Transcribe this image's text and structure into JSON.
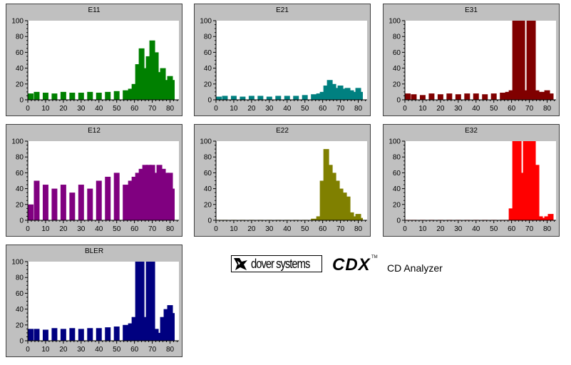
{
  "chart_data": [
    {
      "id": "E11",
      "type": "bar",
      "title": "E11",
      "color": "#008000",
      "xlim": [
        0,
        85
      ],
      "ylim": [
        0,
        100
      ],
      "xticks": [
        "0",
        "10",
        "20",
        "30",
        "40",
        "50",
        "60",
        "70",
        "80"
      ],
      "yticks": [
        "0",
        "20",
        "40",
        "60",
        "80",
        "100"
      ],
      "x": [
        0,
        5,
        10,
        15,
        20,
        25,
        30,
        35,
        40,
        45,
        50,
        55,
        58,
        60,
        62,
        64,
        66,
        68,
        70,
        72,
        74,
        76,
        78,
        80,
        81
      ],
      "y": [
        8,
        10,
        9,
        8,
        10,
        9,
        9,
        10,
        9,
        10,
        11,
        12,
        14,
        20,
        45,
        65,
        40,
        55,
        75,
        60,
        35,
        40,
        25,
        30,
        25
      ]
    },
    {
      "id": "E21",
      "type": "bar",
      "title": "E21",
      "color": "#008080",
      "xlim": [
        0,
        85
      ],
      "ylim": [
        0,
        100
      ],
      "xticks": [
        "0",
        "10",
        "20",
        "30",
        "40",
        "50",
        "60",
        "70",
        "80"
      ],
      "yticks": [
        "0",
        "20",
        "40",
        "60",
        "80",
        "100"
      ],
      "x": [
        0,
        5,
        10,
        15,
        20,
        25,
        30,
        35,
        40,
        45,
        50,
        55,
        58,
        60,
        62,
        64,
        66,
        68,
        70,
        72,
        74,
        76,
        78,
        80,
        81
      ],
      "y": [
        4,
        5,
        5,
        4,
        5,
        5,
        4,
        5,
        5,
        5,
        6,
        7,
        8,
        10,
        18,
        25,
        20,
        15,
        18,
        14,
        15,
        12,
        10,
        15,
        10
      ]
    },
    {
      "id": "E31",
      "type": "bar",
      "title": "E31",
      "color": "#800000",
      "xlim": [
        0,
        85
      ],
      "ylim": [
        0,
        100
      ],
      "xticks": [
        "0",
        "10",
        "20",
        "30",
        "40",
        "50",
        "60",
        "70",
        "80"
      ],
      "yticks": [
        "0",
        "20",
        "40",
        "60",
        "80",
        "100"
      ],
      "x": [
        0,
        5,
        10,
        15,
        20,
        25,
        30,
        35,
        40,
        45,
        50,
        55,
        58,
        60,
        62,
        64,
        66,
        68,
        70,
        72,
        74,
        76,
        78,
        80,
        82
      ],
      "y": [
        8,
        7,
        6,
        8,
        7,
        8,
        7,
        8,
        8,
        7,
        8,
        9,
        10,
        12,
        100,
        100,
        100,
        12,
        100,
        100,
        12,
        10,
        10,
        12,
        8
      ]
    },
    {
      "id": "E12",
      "type": "bar",
      "title": "E12",
      "color": "#800080",
      "xlim": [
        0,
        85
      ],
      "ylim": [
        0,
        100
      ],
      "xticks": [
        "0",
        "10",
        "20",
        "30",
        "40",
        "50",
        "60",
        "70",
        "80"
      ],
      "yticks": [
        "0",
        "20",
        "40",
        "60",
        "80",
        "100"
      ],
      "x": [
        0,
        5,
        10,
        15,
        20,
        25,
        30,
        35,
        40,
        45,
        50,
        55,
        58,
        60,
        62,
        64,
        66,
        68,
        70,
        72,
        74,
        76,
        78,
        80,
        81
      ],
      "y": [
        20,
        50,
        45,
        40,
        45,
        35,
        45,
        40,
        50,
        55,
        60,
        45,
        50,
        55,
        60,
        65,
        70,
        70,
        70,
        60,
        70,
        65,
        60,
        60,
        40
      ]
    },
    {
      "id": "E22",
      "type": "bar",
      "title": "E22",
      "color": "#808000",
      "xlim": [
        0,
        85
      ],
      "ylim": [
        0,
        100
      ],
      "xticks": [
        "0",
        "10",
        "20",
        "30",
        "40",
        "50",
        "60",
        "70",
        "80"
      ],
      "yticks": [
        "0",
        "20",
        "40",
        "60",
        "80",
        "100"
      ],
      "x": [
        0,
        5,
        10,
        15,
        20,
        25,
        30,
        35,
        40,
        45,
        50,
        55,
        58,
        60,
        62,
        64,
        66,
        68,
        70,
        72,
        74,
        76,
        78,
        80,
        81
      ],
      "y": [
        0,
        0,
        0,
        0,
        0,
        0,
        0,
        0,
        0,
        0,
        0,
        2,
        5,
        50,
        90,
        70,
        60,
        50,
        40,
        35,
        30,
        10,
        5,
        8,
        3
      ]
    },
    {
      "id": "E32",
      "type": "bar",
      "title": "E32",
      "color": "#ff0000",
      "xlim": [
        0,
        85
      ],
      "ylim": [
        0,
        100
      ],
      "xticks": [
        "0",
        "10",
        "20",
        "30",
        "40",
        "50",
        "60",
        "70",
        "80"
      ],
      "yticks": [
        "0",
        "20",
        "40",
        "60",
        "80",
        "100"
      ],
      "x": [
        0,
        5,
        10,
        15,
        20,
        25,
        30,
        35,
        40,
        45,
        50,
        55,
        58,
        60,
        62,
        64,
        66,
        68,
        70,
        72,
        74,
        76,
        78,
        80,
        82
      ],
      "y": [
        0,
        0,
        0,
        0,
        0,
        0,
        0,
        0,
        0,
        0,
        0,
        0,
        0,
        15,
        100,
        100,
        60,
        100,
        100,
        100,
        70,
        5,
        3,
        5,
        8
      ]
    },
    {
      "id": "BLER",
      "type": "bar",
      "title": "BLER",
      "color": "#000080",
      "xlim": [
        0,
        85
      ],
      "ylim": [
        0,
        100
      ],
      "xticks": [
        "0",
        "10",
        "20",
        "30",
        "40",
        "50",
        "60",
        "70",
        "80"
      ],
      "yticks": [
        "0",
        "20",
        "40",
        "60",
        "80",
        "100"
      ],
      "x": [
        0,
        5,
        10,
        15,
        20,
        25,
        30,
        35,
        40,
        45,
        50,
        55,
        58,
        60,
        62,
        64,
        66,
        68,
        70,
        72,
        74,
        76,
        78,
        80,
        81
      ],
      "y": [
        15,
        15,
        14,
        16,
        15,
        16,
        15,
        16,
        16,
        17,
        18,
        20,
        22,
        30,
        100,
        100,
        30,
        100,
        100,
        15,
        10,
        30,
        40,
        45,
        35
      ]
    }
  ],
  "branding": {
    "company": "dover systems",
    "product": "CDX",
    "trademark": "TM",
    "tagline": "CD Analyzer"
  }
}
